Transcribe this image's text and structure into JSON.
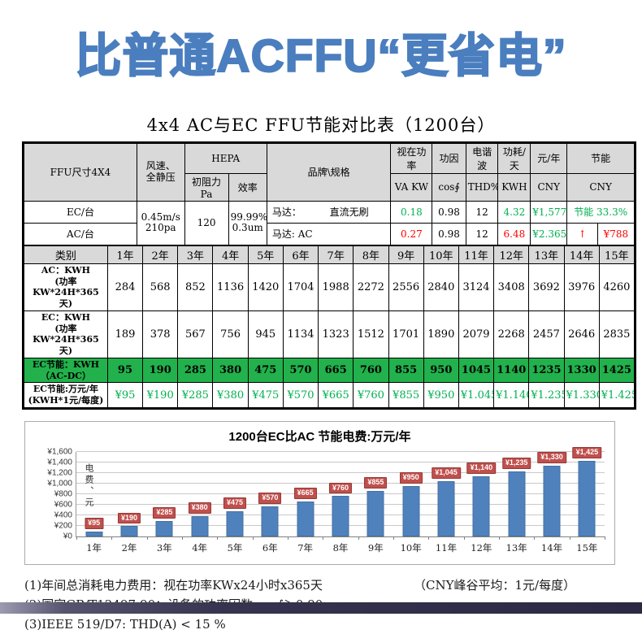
{
  "page": {
    "title": "比普通ACFFU“更省电”",
    "subtitle": "4x4 AC与EC FFU节能对比表（1200台）"
  },
  "colors": {
    "title_blue": "#4a7ebe",
    "bar_blue": "#4f81bd",
    "bar_label_red": "#c0504d",
    "green_text": "#00b050",
    "red_text": "#ff0000",
    "highlight_row_green": "#22b14c",
    "header_gray": "#d9d9d9"
  },
  "spec_table": {
    "headers": {
      "ffu_size": "FFU尺寸4X4",
      "wind": "风速、\n全静压",
      "hepa": "HEPA",
      "hepa_resistance": "初阻力Pa",
      "hepa_efficiency": "效率",
      "brand": "品牌\\规格",
      "apparent_power": "视在功率",
      "apparent_power_unit": "VA KW",
      "power_factor": "功因",
      "power_factor_unit": "cos∮",
      "harmonics": "电谐波",
      "harmonics_unit": "THD%",
      "consumption_day": "功耗/天",
      "consumption_day_unit": "KWH",
      "cost_year": "元/年",
      "cost_year_unit": "CNY",
      "saving": "节能",
      "saving_unit": "CNY"
    },
    "shared": {
      "wind_value": "0.45m/s\n210pa",
      "resistance_value": "120",
      "efficiency_value": "99.99%\n0.3um"
    },
    "ec_row": {
      "label": "EC/台",
      "motor_label": "马达：",
      "motor_value": "直流无刷",
      "va": "0.18",
      "cos": "0.98",
      "thd": "12",
      "kwh": "4.32",
      "cny": "¥1,577",
      "saving": "节能 33.3%"
    },
    "ac_row": {
      "label": "AC/台",
      "motor": "马达: AC",
      "va": "0.27",
      "cos": "0.98",
      "thd": "12",
      "kwh": "6.48",
      "cny": "¥2.365",
      "arrow": "↑",
      "saving": "¥788"
    }
  },
  "years_table": {
    "category_header": "类别",
    "year_labels": [
      "1年",
      "2年",
      "3年",
      "4年",
      "5年",
      "6年",
      "7年",
      "8年",
      "9年",
      "10年",
      "11年",
      "12年",
      "13年",
      "14年",
      "15年"
    ],
    "rows": [
      {
        "label_line1": "AC：KWH",
        "label_line2": "(功率KW*24H*365天)",
        "values": [
          "284",
          "568",
          "852",
          "1136",
          "1420",
          "1704",
          "1988",
          "2272",
          "2556",
          "2840",
          "3124",
          "3408",
          "3692",
          "3976",
          "4260"
        ],
        "highlight": false,
        "green_text": false
      },
      {
        "label_line1": "EC：KWH",
        "label_line2": "(功率KW*24H*365天)",
        "values": [
          "189",
          "378",
          "567",
          "756",
          "945",
          "1134",
          "1323",
          "1512",
          "1701",
          "1890",
          "2079",
          "2268",
          "2457",
          "2646",
          "2835"
        ],
        "highlight": false,
        "green_text": false
      },
      {
        "label_line1": "EC节能：KWH",
        "label_line2": "（AC-DC）",
        "values": [
          "95",
          "190",
          "285",
          "380",
          "475",
          "570",
          "665",
          "760",
          "855",
          "950",
          "1045",
          "1140",
          "1235",
          "1330",
          "1425"
        ],
        "highlight": true,
        "green_text": false
      },
      {
        "label_line1": "EC节能:万元/年",
        "label_line2": "(KWH*1元/每度)",
        "values": [
          "¥95",
          "¥190",
          "¥285",
          "¥380",
          "¥475",
          "¥570",
          "¥665",
          "¥760",
          "¥855",
          "¥950",
          "¥1.045",
          "¥1.140",
          "¥1.235",
          "¥1.330",
          "¥1.425"
        ],
        "highlight": false,
        "green_text": true
      }
    ]
  },
  "chart_data": {
    "type": "bar",
    "title": "1200台EC比AC 节能电费:万元/年",
    "categories": [
      "1年",
      "2年",
      "3年",
      "4年",
      "5年",
      "6年",
      "7年",
      "8年",
      "9年",
      "10年",
      "11年",
      "12年",
      "13年",
      "14年",
      "15年"
    ],
    "values": [
      95,
      190,
      285,
      380,
      475,
      570,
      665,
      760,
      855,
      950,
      1045,
      1140,
      1235,
      1330,
      1425
    ],
    "bar_labels": [
      "¥95",
      "¥190",
      "¥285",
      "¥380",
      "¥475",
      "¥570",
      "¥665",
      "¥760",
      "¥855",
      "¥950",
      "¥1,045",
      "¥1,140",
      "¥1,235",
      "¥1,330",
      "¥1,425"
    ],
    "xlabel": "",
    "ylabel": "电费、元",
    "ylim": [
      0,
      1600
    ],
    "ytick_labels": [
      "¥0",
      "¥200",
      "¥400",
      "¥600",
      "¥800",
      "¥1,000",
      "¥1,200",
      "¥1,400",
      "¥1,600"
    ],
    "grid": true,
    "legend": false
  },
  "notes": {
    "line1": "(1)年间总消耗电力费用：视在功率KWx24小时x365天",
    "line1_right": "（CNY峰谷平均：1元/每度）",
    "line2": "(2)国家GB/T12497-90：设备的功率因数 cos∮＞0.90",
    "line3": "(3)IEEE 519/D7: THD(A) < 15 %"
  }
}
